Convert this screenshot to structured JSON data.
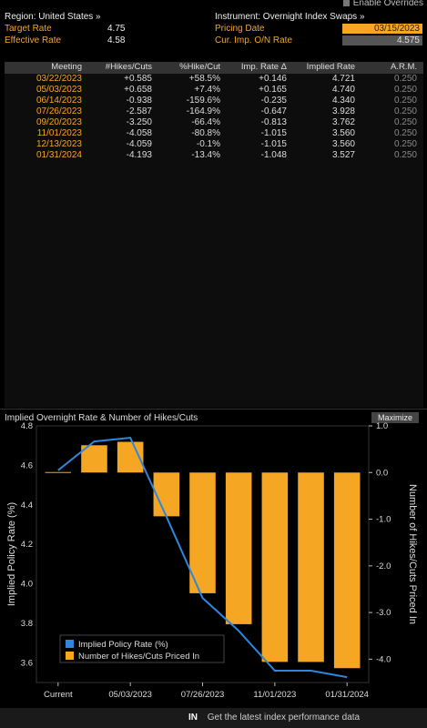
{
  "header": {
    "enable_overrides": "Enable Overrides",
    "region_label": "Region: United States »",
    "target_rate_label": "Target Rate",
    "target_rate_value": "4.75",
    "effective_rate_label": "Effective Rate",
    "effective_rate_value": "4.58",
    "instrument_label": "Instrument: Overnight Index Swaps »",
    "pricing_date_label": "Pricing Date",
    "pricing_date_value": "03/15/2023",
    "cur_imp_label": "Cur. Imp. O/N Rate",
    "cur_imp_value": "4.575"
  },
  "table": {
    "columns": [
      "Meeting",
      "#Hikes/Cuts",
      "%Hike/Cut",
      "Imp. Rate Δ",
      "Implied Rate",
      "A.R.M."
    ],
    "rows": [
      [
        "03/22/2023",
        "+0.585",
        "+58.5%",
        "+0.146",
        "4.721",
        "0.250"
      ],
      [
        "05/03/2023",
        "+0.658",
        "+7.4%",
        "+0.165",
        "4.740",
        "0.250"
      ],
      [
        "06/14/2023",
        "-0.938",
        "-159.6%",
        "-0.235",
        "4.340",
        "0.250"
      ],
      [
        "07/26/2023",
        "-2.587",
        "-164.9%",
        "-0.647",
        "3.928",
        "0.250"
      ],
      [
        "09/20/2023",
        "-3.250",
        "-66.4%",
        "-0.813",
        "3.762",
        "0.250"
      ],
      [
        "11/01/2023",
        "-4.058",
        "-80.8%",
        "-1.015",
        "3.560",
        "0.250"
      ],
      [
        "12/13/2023",
        "-4.059",
        "-0.1%",
        "-1.015",
        "3.560",
        "0.250"
      ],
      [
        "01/31/2024",
        "-4.193",
        "-13.4%",
        "-1.048",
        "3.527",
        "0.250"
      ]
    ]
  },
  "chart_title": "Implied Overnight Rate & Number of Hikes/Cuts",
  "maximize_label": "Maximize",
  "footer": {
    "tag": "IN",
    "text": "Get the latest index performance data"
  },
  "colors": {
    "bar": "#f5a623",
    "line": "#2e86de",
    "accent": "#f5a623"
  },
  "chart_data": {
    "type": "bar",
    "categories": [
      "Current",
      "03/22/2023",
      "05/03/2023",
      "06/14/2023",
      "07/26/2023",
      "09/20/2023",
      "11/01/2023",
      "12/13/2023",
      "01/31/2024"
    ],
    "x_tick_labels": [
      "Current",
      "05/03/2023",
      "07/26/2023",
      "11/01/2023",
      "01/31/2024"
    ],
    "series": [
      {
        "name": "Implied Policy Rate (%)",
        "type": "line",
        "axis": "left",
        "values": [
          4.575,
          4.721,
          4.74,
          4.34,
          3.928,
          3.762,
          3.56,
          3.56,
          3.527
        ]
      },
      {
        "name": "Number of Hikes/Cuts Priced In",
        "type": "bar",
        "axis": "right",
        "values": [
          0,
          0.585,
          0.658,
          -0.938,
          -2.587,
          -3.25,
          -4.058,
          -4.059,
          -4.193
        ]
      }
    ],
    "ylabel": "Implied Policy Rate (%)",
    "ylabel_right": "Number of Hikes/Cuts Priced In",
    "ylim": [
      3.5,
      4.8
    ],
    "yticks": [
      "3.6",
      "3.8",
      "4.0",
      "4.2",
      "4.4",
      "4.6",
      "4.8"
    ],
    "ylim_right": [
      -4.5,
      1.0
    ],
    "yticks_right": [
      "-4.0",
      "-3.0",
      "-2.0",
      "-1.0",
      "0.0",
      "1.0"
    ],
    "legend_position": "bottom-left"
  }
}
